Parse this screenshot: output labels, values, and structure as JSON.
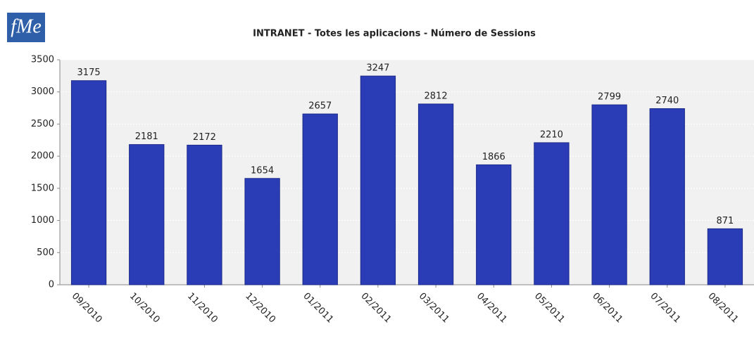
{
  "logo": "fMe",
  "chart_data": {
    "type": "bar",
    "title": "INTRANET - Totes les aplicacions  - Número de Sessions",
    "categories": [
      "09/2010",
      "10/2010",
      "11/2010",
      "12/2010",
      "01/2011",
      "02/2011",
      "03/2011",
      "04/2011",
      "05/2011",
      "06/2011",
      "07/2011",
      "08/2011"
    ],
    "values": [
      3175,
      2181,
      2172,
      1654,
      2657,
      3247,
      2812,
      1866,
      2210,
      2799,
      2740,
      871
    ],
    "color": "#2a3db6",
    "ylim": [
      0,
      3500
    ],
    "yticks": [
      0,
      500,
      1000,
      1500,
      2000,
      2500,
      3000,
      3500
    ],
    "grid": true
  }
}
